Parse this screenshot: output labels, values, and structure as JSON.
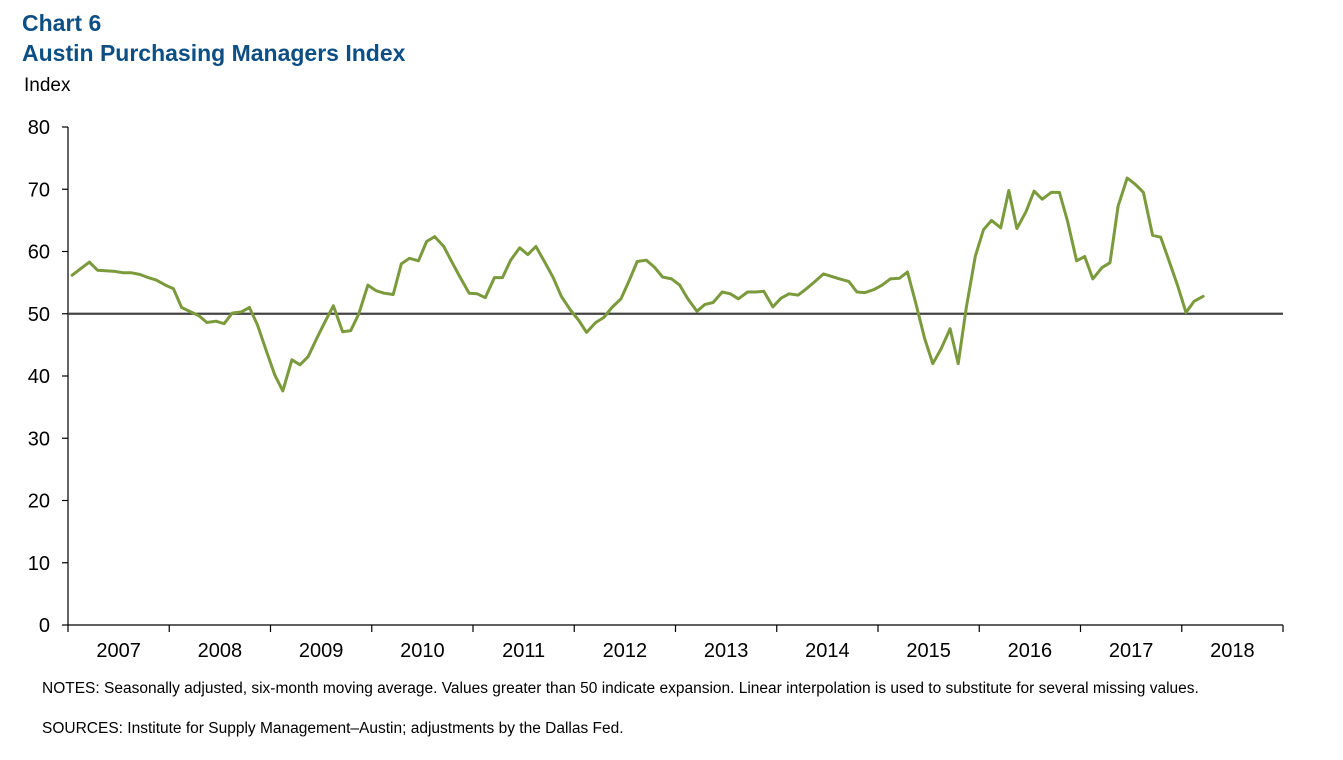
{
  "header": {
    "chart_number": "Chart 6",
    "title": "Austin Purchasing Managers Index"
  },
  "chart_data": {
    "type": "line",
    "title": "Austin Purchasing Managers Index",
    "ylabel": "Index",
    "xlabel": "",
    "ylim": [
      0,
      80
    ],
    "yticks": [
      "0",
      "10",
      "20",
      "30",
      "40",
      "50",
      "60",
      "70",
      "80"
    ],
    "x_tick_labels": [
      "2007",
      "2008",
      "2009",
      "2010",
      "2011",
      "2012",
      "2013",
      "2014",
      "2015",
      "2016",
      "2017",
      "2018"
    ],
    "x_range_years": [
      2007,
      2019
    ],
    "reference_line": 50,
    "grid": false,
    "legend": "none",
    "line_color": "#7a9a3c",
    "series": [
      {
        "points": [
          [
            2007.0,
            56.2
          ],
          [
            2007.08,
            57.2
          ],
          [
            2007.17,
            58.3
          ],
          [
            2007.25,
            57.0
          ],
          [
            2007.33,
            56.9
          ],
          [
            2007.42,
            56.8
          ],
          [
            2007.5,
            56.6
          ],
          [
            2007.58,
            56.6
          ],
          [
            2007.67,
            56.3
          ],
          [
            2007.75,
            55.8
          ],
          [
            2007.83,
            55.4
          ],
          [
            2007.92,
            54.6
          ],
          [
            2008.0,
            54.0
          ],
          [
            2008.08,
            51.0
          ],
          [
            2008.17,
            50.3
          ],
          [
            2008.25,
            49.7
          ],
          [
            2008.33,
            48.6
          ],
          [
            2008.42,
            48.8
          ],
          [
            2008.5,
            48.4
          ],
          [
            2008.58,
            50.1
          ],
          [
            2008.67,
            50.3
          ],
          [
            2008.75,
            51.0
          ],
          [
            2008.83,
            48.2
          ],
          [
            2008.92,
            43.9
          ],
          [
            2009.0,
            40.2
          ],
          [
            2009.08,
            37.6
          ],
          [
            2009.17,
            42.6
          ],
          [
            2009.25,
            41.8
          ],
          [
            2009.33,
            43.1
          ],
          [
            2009.42,
            46.2
          ],
          [
            2009.5,
            48.8
          ],
          [
            2009.58,
            51.3
          ],
          [
            2009.67,
            47.1
          ],
          [
            2009.75,
            47.3
          ],
          [
            2009.83,
            50.0
          ],
          [
            2009.92,
            54.6
          ],
          [
            2010.0,
            53.7
          ],
          [
            2010.08,
            53.3
          ],
          [
            2010.17,
            53.1
          ],
          [
            2010.25,
            58.0
          ],
          [
            2010.33,
            58.9
          ],
          [
            2010.42,
            58.5
          ],
          [
            2010.5,
            61.6
          ],
          [
            2010.58,
            62.4
          ],
          [
            2010.67,
            60.8
          ],
          [
            2010.75,
            58.3
          ],
          [
            2010.83,
            55.9
          ],
          [
            2010.92,
            53.3
          ],
          [
            2011.0,
            53.2
          ],
          [
            2011.08,
            52.6
          ],
          [
            2011.17,
            55.8
          ],
          [
            2011.25,
            55.8
          ],
          [
            2011.33,
            58.6
          ],
          [
            2011.42,
            60.6
          ],
          [
            2011.5,
            59.5
          ],
          [
            2011.58,
            60.8
          ],
          [
            2011.67,
            58.2
          ],
          [
            2011.75,
            55.8
          ],
          [
            2011.83,
            52.8
          ],
          [
            2011.92,
            50.6
          ],
          [
            2012.0,
            49.0
          ],
          [
            2012.08,
            47.0
          ],
          [
            2012.17,
            48.6
          ],
          [
            2012.25,
            49.4
          ],
          [
            2012.33,
            51.0
          ],
          [
            2012.42,
            52.4
          ],
          [
            2012.5,
            55.3
          ],
          [
            2012.58,
            58.4
          ],
          [
            2012.67,
            58.6
          ],
          [
            2012.75,
            57.5
          ],
          [
            2012.83,
            55.9
          ],
          [
            2012.92,
            55.6
          ],
          [
            2013.0,
            54.6
          ],
          [
            2013.08,
            52.4
          ],
          [
            2013.17,
            50.4
          ],
          [
            2013.25,
            51.5
          ],
          [
            2013.33,
            51.8
          ],
          [
            2013.42,
            53.5
          ],
          [
            2013.5,
            53.2
          ],
          [
            2013.58,
            52.4
          ],
          [
            2013.67,
            53.5
          ],
          [
            2013.75,
            53.5
          ],
          [
            2013.83,
            53.6
          ],
          [
            2013.92,
            51.1
          ],
          [
            2014.0,
            52.5
          ],
          [
            2014.08,
            53.2
          ],
          [
            2014.17,
            53.0
          ],
          [
            2014.25,
            54.0
          ],
          [
            2014.33,
            55.1
          ],
          [
            2014.42,
            56.4
          ],
          [
            2014.5,
            56.0
          ],
          [
            2014.58,
            55.6
          ],
          [
            2014.67,
            55.2
          ],
          [
            2014.75,
            53.5
          ],
          [
            2014.83,
            53.4
          ],
          [
            2014.92,
            53.9
          ],
          [
            2015.0,
            54.6
          ],
          [
            2015.08,
            55.6
          ],
          [
            2015.17,
            55.7
          ],
          [
            2015.25,
            56.7
          ],
          [
            2015.33,
            51.8
          ],
          [
            2015.42,
            46.0
          ],
          [
            2015.5,
            42.0
          ],
          [
            2015.58,
            44.3
          ],
          [
            2015.67,
            47.6
          ],
          [
            2015.75,
            42.0
          ],
          [
            2015.83,
            51.0
          ],
          [
            2015.92,
            59.3
          ],
          [
            2016.0,
            63.5
          ],
          [
            2016.08,
            65.0
          ],
          [
            2016.17,
            63.8
          ],
          [
            2016.25,
            69.8
          ],
          [
            2016.33,
            63.7
          ],
          [
            2016.42,
            66.4
          ],
          [
            2016.5,
            69.7
          ],
          [
            2016.58,
            68.4
          ],
          [
            2016.67,
            69.5
          ],
          [
            2016.75,
            69.5
          ],
          [
            2016.83,
            64.9
          ],
          [
            2016.92,
            58.5
          ],
          [
            2017.0,
            59.2
          ],
          [
            2017.08,
            55.6
          ],
          [
            2017.17,
            57.4
          ],
          [
            2017.25,
            58.2
          ],
          [
            2017.33,
            67.3
          ],
          [
            2017.42,
            71.8
          ],
          [
            2017.5,
            70.8
          ],
          [
            2017.58,
            69.5
          ],
          [
            2017.67,
            62.6
          ],
          [
            2017.75,
            62.3
          ],
          [
            2017.83,
            58.6
          ],
          [
            2017.92,
            54.4
          ],
          [
            2018.0,
            50.2
          ],
          [
            2018.08,
            52.0
          ],
          [
            2018.17,
            52.8
          ]
        ]
      }
    ]
  },
  "footer": {
    "notes": "NOTES: Seasonally adjusted, six-month moving average. Values greater than 50 indicate expansion. Linear interpolation is used to substitute for several missing values.",
    "sources": "SOURCES: Institute for Supply Management–Austin; adjustments by the Dallas Fed."
  }
}
